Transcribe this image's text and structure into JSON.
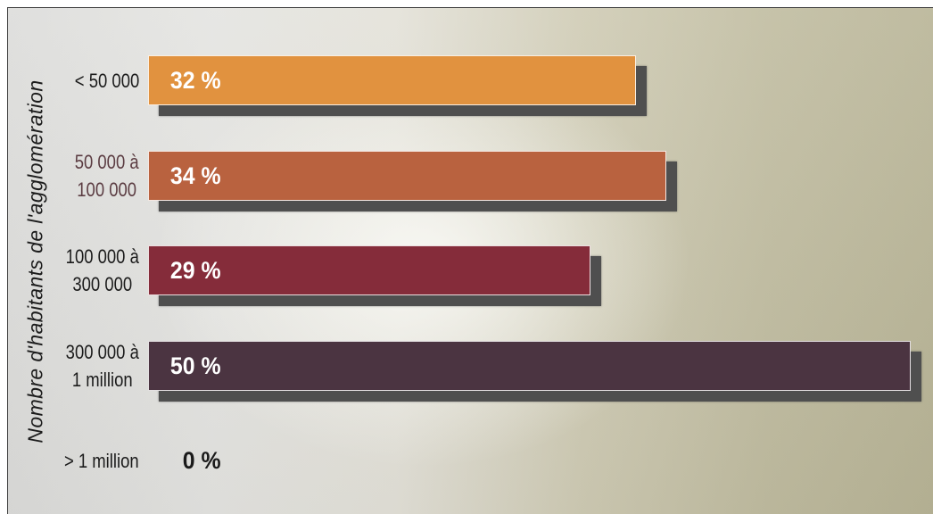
{
  "chart_data": {
    "type": "bar",
    "orientation": "horizontal",
    "ylabel": "Nombre d'habitants de l'agglomération",
    "categories": [
      "< 50 000",
      "50 000 à\n100 000",
      "100 000 à\n300 000",
      "300 000 à\n1 million",
      "> 1 million"
    ],
    "values": [
      32,
      34,
      29,
      50,
      0
    ],
    "value_labels": [
      "32 %",
      "34 %",
      "29 %",
      "50 %",
      "0 %"
    ],
    "xlim": [
      0,
      50
    ],
    "grid": false,
    "bar_colors": [
      "#E1923F",
      "#B9623F",
      "#852C3A",
      "#4B3441",
      null
    ],
    "category_label_colors": [
      "#1b1b1b",
      "#5b3c42",
      "#1b1b1b",
      "#1b1b1b",
      "#1b1b1b"
    ],
    "value_label_colors": [
      "#FFFFFF",
      "#FFFFFF",
      "#FFFFFF",
      "#FFFFFF",
      "#1a1a1a"
    ],
    "bar_shadow_color": "#4F4F4F"
  }
}
